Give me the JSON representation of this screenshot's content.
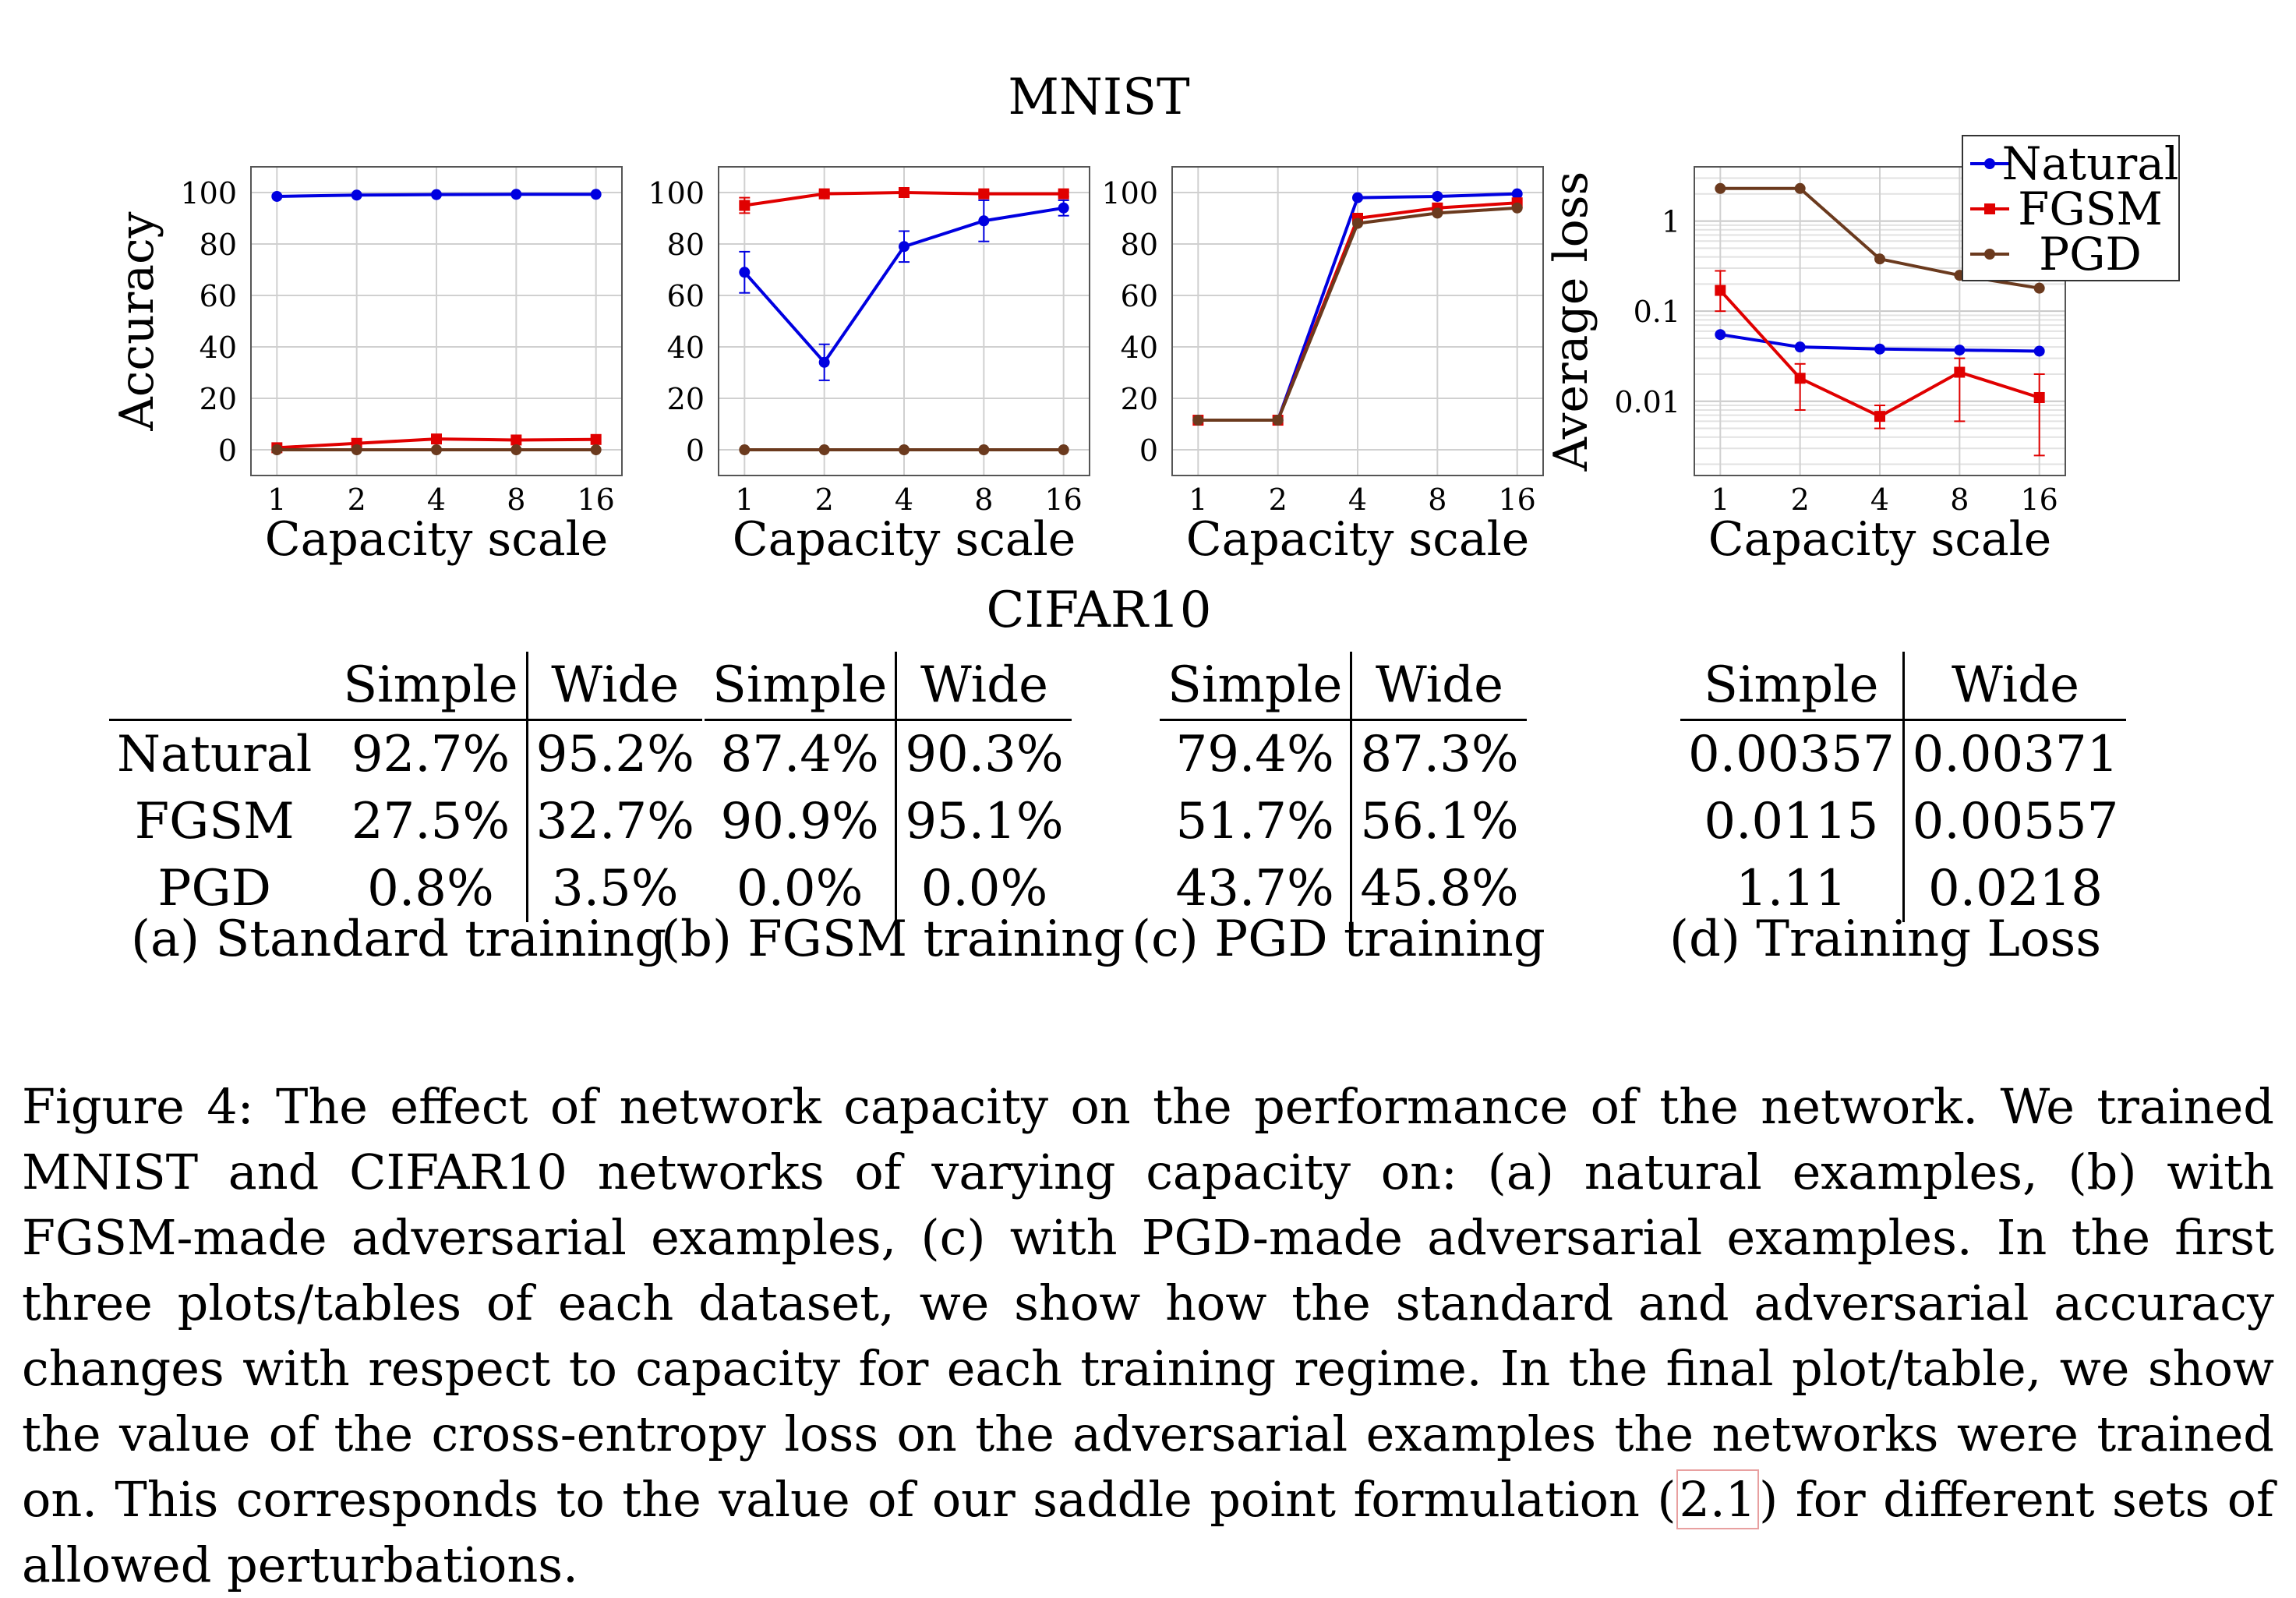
{
  "mnist_title": "MNIST",
  "cifar_title": "CIFAR10",
  "chart_data": [
    {
      "id": "a",
      "type": "line",
      "xlabel": "Capacity scale",
      "ylabel": "Accuracy",
      "categories": [
        "1",
        "2",
        "4",
        "8",
        "16"
      ],
      "ylim": [
        -10,
        110
      ],
      "yticks": [
        0,
        20,
        40,
        60,
        80,
        100
      ],
      "yscale": "linear",
      "grid": true,
      "series": [
        {
          "name": "Natural",
          "color": "#0000e0",
          "marker": "circle",
          "values": [
            98.5,
            99.0,
            99.2,
            99.3,
            99.3
          ],
          "err": [
            0,
            0,
            0,
            0,
            0
          ]
        },
        {
          "name": "FGSM",
          "color": "#e00000",
          "marker": "square",
          "values": [
            0.8,
            2.5,
            4.2,
            3.8,
            4.0
          ],
          "err": [
            0,
            0,
            0,
            0,
            0
          ]
        },
        {
          "name": "PGD",
          "color": "#6b3a1e",
          "marker": "circle",
          "values": [
            0.0,
            0.0,
            0.0,
            0.0,
            0.0
          ],
          "err": [
            0,
            0,
            0,
            0,
            0
          ]
        }
      ]
    },
    {
      "id": "b",
      "type": "line",
      "xlabel": "Capacity scale",
      "ylabel": "",
      "categories": [
        "1",
        "2",
        "4",
        "8",
        "16"
      ],
      "ylim": [
        -10,
        110
      ],
      "yticks": [
        0,
        20,
        40,
        60,
        80,
        100
      ],
      "yscale": "linear",
      "grid": true,
      "series": [
        {
          "name": "Natural",
          "color": "#0000e0",
          "marker": "circle",
          "values": [
            69,
            34,
            79,
            89,
            94
          ],
          "err": [
            8,
            7,
            6,
            8,
            3
          ]
        },
        {
          "name": "FGSM",
          "color": "#e00000",
          "marker": "square",
          "values": [
            95,
            99.5,
            100,
            99.5,
            99.5
          ],
          "err": [
            3,
            1,
            1,
            1,
            1
          ]
        },
        {
          "name": "PGD",
          "color": "#6b3a1e",
          "marker": "circle",
          "values": [
            0,
            0,
            0,
            0,
            0
          ],
          "err": [
            0,
            0,
            0,
            0,
            0
          ]
        }
      ]
    },
    {
      "id": "c",
      "type": "line",
      "xlabel": "Capacity scale",
      "ylabel": "",
      "categories": [
        "1",
        "2",
        "4",
        "8",
        "16"
      ],
      "ylim": [
        -10,
        110
      ],
      "yticks": [
        0,
        20,
        40,
        60,
        80,
        100
      ],
      "yscale": "linear",
      "grid": true,
      "series": [
        {
          "name": "Natural",
          "color": "#0000e0",
          "marker": "circle",
          "values": [
            11.5,
            11.5,
            98,
            98.5,
            99.5
          ],
          "err": [
            0,
            0,
            0,
            0,
            0
          ]
        },
        {
          "name": "FGSM",
          "color": "#e00000",
          "marker": "square",
          "values": [
            11.5,
            11.5,
            90,
            94,
            96
          ],
          "err": [
            0,
            0,
            0,
            0,
            0
          ]
        },
        {
          "name": "PGD",
          "color": "#6b3a1e",
          "marker": "circle",
          "values": [
            11.5,
            11.5,
            88,
            92,
            94
          ],
          "err": [
            0,
            0,
            0,
            0,
            0
          ]
        }
      ]
    },
    {
      "id": "d",
      "type": "line",
      "xlabel": "Capacity scale",
      "ylabel": "Average loss",
      "categories": [
        "1",
        "2",
        "4",
        "8",
        "16"
      ],
      "yscale": "log",
      "ylim": [
        0.0015,
        4
      ],
      "yticks": [
        0.01,
        0.1,
        1
      ],
      "ytick_labels": [
        "0.01",
        "0.1",
        "1"
      ],
      "grid": true,
      "legend": {
        "placement": "top-right",
        "entries": [
          "Natural",
          "FGSM",
          "PGD"
        ]
      },
      "series": [
        {
          "name": "Natural",
          "color": "#0000e0",
          "marker": "circle",
          "values": [
            0.055,
            0.04,
            0.038,
            0.037,
            0.036
          ],
          "lo": [
            0.055,
            0.04,
            0.038,
            0.037,
            0.036
          ],
          "hi": [
            0.055,
            0.04,
            0.038,
            0.037,
            0.036
          ]
        },
        {
          "name": "FGSM",
          "color": "#e00000",
          "marker": "square",
          "values": [
            0.17,
            0.018,
            0.0068,
            0.021,
            0.011
          ],
          "lo": [
            0.1,
            0.008,
            0.005,
            0.006,
            0.0025
          ],
          "hi": [
            0.28,
            0.026,
            0.009,
            0.03,
            0.02
          ]
        },
        {
          "name": "PGD",
          "color": "#6b3a1e",
          "marker": "circle",
          "values": [
            2.3,
            2.3,
            0.38,
            0.25,
            0.18
          ],
          "lo": [
            2.3,
            2.3,
            0.38,
            0.25,
            0.18
          ],
          "hi": [
            2.3,
            2.3,
            0.38,
            0.25,
            0.18
          ]
        }
      ]
    }
  ],
  "tables": [
    {
      "headers": [
        "Simple",
        "Wide"
      ],
      "rows": [
        {
          "label": "Natural",
          "simple": "92.7%",
          "wide": "95.2%"
        },
        {
          "label": "FGSM",
          "simple": "27.5%",
          "wide": "32.7%"
        },
        {
          "label": "PGD",
          "simple": "0.8%",
          "wide": "3.5%"
        }
      ],
      "caption": "(a) Standard training"
    },
    {
      "headers": [
        "Simple",
        "Wide"
      ],
      "rows": [
        {
          "simple": "87.4%",
          "wide": "90.3%"
        },
        {
          "simple": "90.9%",
          "wide": "95.1%"
        },
        {
          "simple": "0.0%",
          "wide": "0.0%"
        }
      ],
      "caption": "(b) FGSM training"
    },
    {
      "headers": [
        "Simple",
        "Wide"
      ],
      "rows": [
        {
          "simple": "79.4%",
          "wide": "87.3%"
        },
        {
          "simple": "51.7%",
          "wide": "56.1%"
        },
        {
          "simple": "43.7%",
          "wide": "45.8%"
        }
      ],
      "caption": "(c) PGD training"
    },
    {
      "headers": [
        "Simple",
        "Wide"
      ],
      "rows": [
        {
          "simple": "0.00357",
          "wide": "0.00371"
        },
        {
          "simple": "0.0115",
          "wide": "0.00557"
        },
        {
          "simple": "1.11",
          "wide": "0.0218"
        }
      ],
      "caption": "(d) Training Loss"
    }
  ],
  "figure_caption": {
    "before_ref": "Figure 4: The effect of network capacity on the performance of the network. We trained MNIST and CIFAR10 networks of varying capacity on: (a) natural examples, (b) with FGSM-made adversarial examples, (c) with PGD-made adversarial examples. In the first three plots/tables of each dataset, we show how the standard and adversarial accuracy changes with respect to capacity for each training regime. In the final plot/table, we show the value of the cross-entropy loss on the adversarial examples the networks were trained on. This corresponds to the value of our saddle point formulation (",
    "ref": "2.1",
    "after_ref": ") for different sets of allowed perturbations."
  }
}
